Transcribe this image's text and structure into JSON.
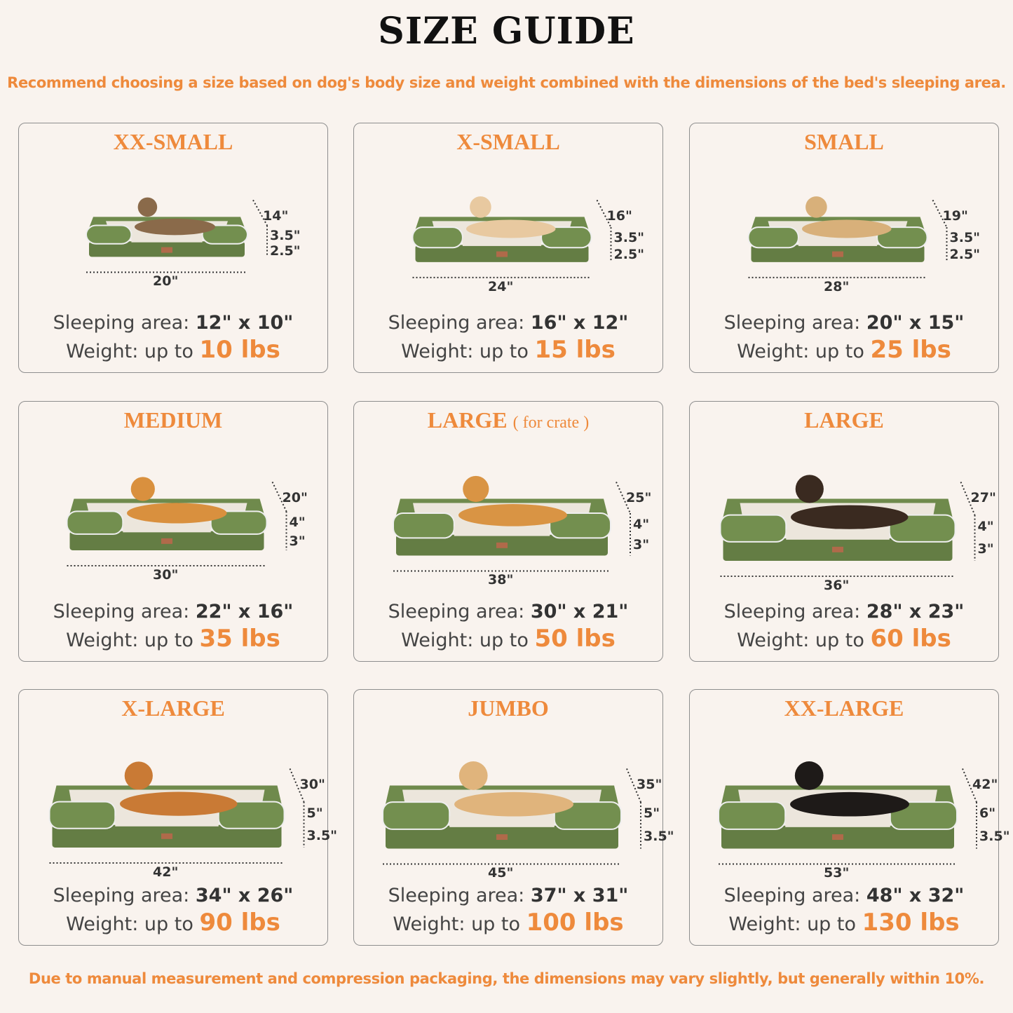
{
  "header": {
    "title": "SIZE GUIDE",
    "subtitle": "Recommend choosing a size based on dog's body size and weight combined with the dimensions of the bed's sleeping area."
  },
  "footer": {
    "note": "Due to manual measurement and compression packaging, the dimensions may vary slightly, but generally within 10%."
  },
  "colors": {
    "accent": "#ee8a3c",
    "bed_green": "#6f8a4c",
    "bed_cushion": "#ece6dc",
    "background": "#f9f3ee"
  },
  "labels": {
    "sleeping_area": "Sleeping area:",
    "weight": "Weight: up to"
  },
  "sizes": [
    {
      "name": "XX-SMALL",
      "note": "",
      "pet": "cat",
      "depth": "14\"",
      "bolster": "3.5\"",
      "base": "2.5\"",
      "length": "20\"",
      "sleeping_area": "12\" x 10\"",
      "weight": "10 lbs"
    },
    {
      "name": "X-SMALL",
      "note": "",
      "pet": "dog",
      "depth": "16\"",
      "bolster": "3.5\"",
      "base": "2.5\"",
      "length": "24\"",
      "sleeping_area": "16\" x 12\"",
      "weight": "15 lbs"
    },
    {
      "name": "SMALL",
      "note": "",
      "pet": "dog",
      "depth": "19\"",
      "bolster": "3.5\"",
      "base": "2.5\"",
      "length": "28\"",
      "sleeping_area": "20\" x 15\"",
      "weight": "25 lbs"
    },
    {
      "name": "MEDIUM",
      "note": "",
      "pet": "dog",
      "depth": "20\"",
      "bolster": "4\"",
      "base": "3\"",
      "length": "30\"",
      "sleeping_area": "22\" x 16\"",
      "weight": "35 lbs"
    },
    {
      "name": "LARGE",
      "note": "( for crate )",
      "pet": "dog",
      "depth": "25\"",
      "bolster": "4\"",
      "base": "3\"",
      "length": "38\"",
      "sleeping_area": "30\" x 21\"",
      "weight": "50 lbs"
    },
    {
      "name": "LARGE",
      "note": "",
      "pet": "dog",
      "depth": "27\"",
      "bolster": "4\"",
      "base": "3\"",
      "length": "36\"",
      "sleeping_area": "28\" x 23\"",
      "weight": "60 lbs"
    },
    {
      "name": "X-LARGE",
      "note": "",
      "pet": "dog",
      "depth": "30\"",
      "bolster": "5\"",
      "base": "3.5\"",
      "length": "42\"",
      "sleeping_area": "34\" x 26\"",
      "weight": "90 lbs"
    },
    {
      "name": "JUMBO",
      "note": "",
      "pet": "dog",
      "depth": "35\"",
      "bolster": "5\"",
      "base": "3.5\"",
      "length": "45\"",
      "sleeping_area": "37\" x 31\"",
      "weight": "100 lbs"
    },
    {
      "name": "XX-LARGE",
      "note": "",
      "pet": "dog",
      "depth": "42\"",
      "bolster": "6\"",
      "base": "3.5\"",
      "length": "53\"",
      "sleeping_area": "48\" x 32\"",
      "weight": "130 lbs"
    }
  ]
}
